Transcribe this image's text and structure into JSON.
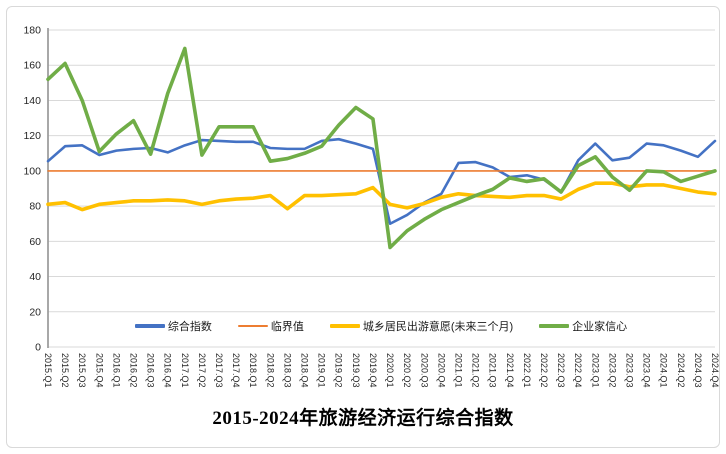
{
  "chart_data": {
    "type": "line",
    "title": "2015-2024年旅游经济运行综合指数",
    "ylim": [
      0,
      180
    ],
    "ytick": 20,
    "grid": true,
    "legend_position": "bottom-inside",
    "grid_color": "#d9d9d9",
    "axis_color": "#9e9e9e",
    "label_color": "#262626",
    "categories": [
      "2015.Q1",
      "2015.Q2",
      "2015.Q3",
      "2015.Q4",
      "2016.Q1",
      "2016.Q2",
      "2016.Q3",
      "2016.Q4",
      "2017.Q1",
      "2017.Q2",
      "2017.Q3",
      "2017.Q4",
      "2018.Q1",
      "2018.Q2",
      "2018.Q3",
      "2018.Q4",
      "2019.Q1",
      "2019.Q2",
      "2019.Q3",
      "2019.Q4",
      "2020.Q1",
      "2020.Q2",
      "2020.Q3",
      "2020.Q4",
      "2021.Q1",
      "2021.Q2",
      "2021.Q3",
      "2021.Q4",
      "2022.Q1",
      "2022.Q2",
      "2022.Q3",
      "2022.Q4",
      "2023.Q1",
      "2023.Q2",
      "2023.Q3",
      "2023.Q4",
      "2024.Q1",
      "2024.Q2",
      "2024.Q3",
      "2024.Q4"
    ],
    "series": [
      {
        "key": "composite-index",
        "name": "综合指数",
        "color": "#4472C4",
        "width": 2.6,
        "values": [
          105.5,
          114,
          114.5,
          109,
          111.5,
          112.5,
          113,
          110.5,
          114.5,
          117.5,
          117,
          116.5,
          116.5,
          113,
          112.5,
          112.5,
          117,
          118,
          115.5,
          112.5,
          70,
          75,
          82,
          87,
          104.5,
          105,
          102,
          96.5,
          97.5,
          95,
          88,
          106,
          115.5,
          106,
          107.5,
          115.5,
          114.5,
          111.5,
          108,
          117
        ]
      },
      {
        "key": "critical-value",
        "name": "临界值",
        "color": "#ED7D31",
        "width": 1.6,
        "values": [
          100,
          100,
          100,
          100,
          100,
          100,
          100,
          100,
          100,
          100,
          100,
          100,
          100,
          100,
          100,
          100,
          100,
          100,
          100,
          100,
          100,
          100,
          100,
          100,
          100,
          100,
          100,
          100,
          100,
          100,
          100,
          100,
          100,
          100,
          100,
          100,
          100,
          100,
          100,
          100
        ]
      },
      {
        "key": "travel-willingness",
        "name": "城乡居民出游意愿(未来三个月)",
        "color": "#FFC000",
        "width": 3.6,
        "values": [
          81,
          82,
          78,
          81,
          82,
          83,
          83,
          83.5,
          83,
          81,
          83,
          84,
          84.5,
          86,
          78.5,
          86,
          86,
          86.5,
          87,
          90.5,
          81,
          79,
          81.5,
          85,
          87,
          86,
          85.5,
          85,
          86,
          86,
          84,
          89.5,
          93,
          93,
          91,
          92,
          92,
          90,
          88,
          87
        ]
      },
      {
        "key": "entrepreneur-confidence",
        "name": "企业家信心",
        "color": "#70AD47",
        "width": 3.6,
        "values": [
          152,
          161,
          140,
          111,
          121,
          128.5,
          109.5,
          144,
          169.5,
          109,
          125,
          125,
          125,
          105.5,
          107,
          110,
          114,
          126,
          136,
          129.5,
          56.5,
          66,
          72.5,
          78,
          82,
          86,
          89.5,
          96,
          94,
          95.5,
          88,
          103,
          108,
          96.5,
          89,
          100,
          99.5,
          94,
          97,
          100
        ]
      }
    ]
  }
}
